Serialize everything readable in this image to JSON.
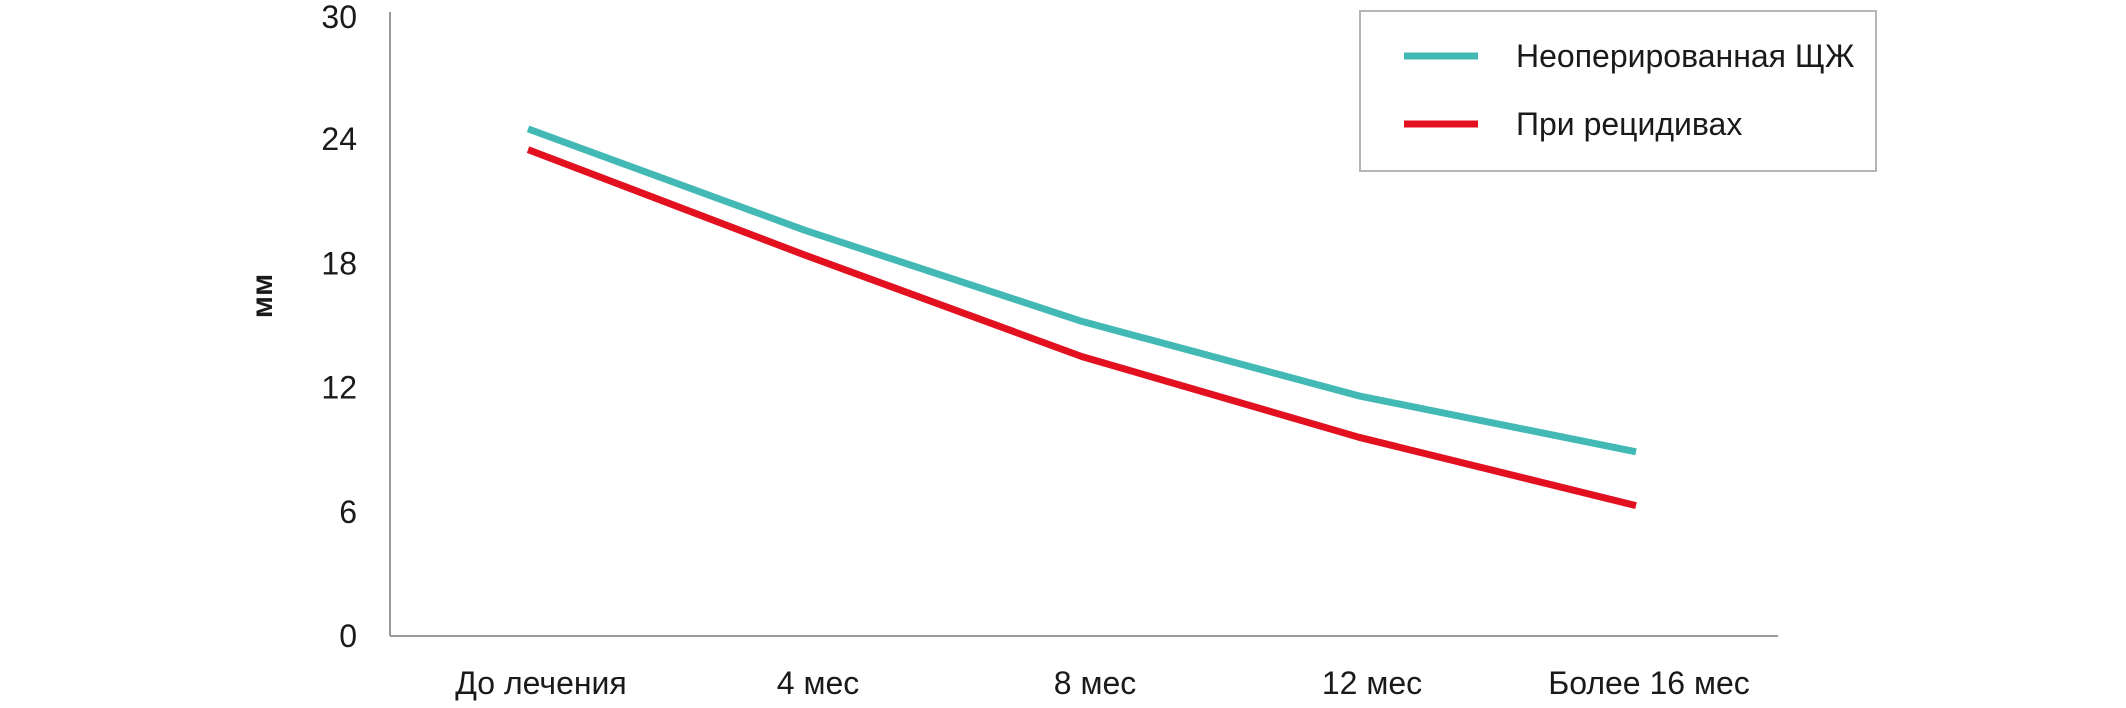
{
  "chart_data": {
    "type": "line",
    "title": "",
    "xlabel": "",
    "ylabel": "мм",
    "categories": [
      "До лечения",
      "4 мес",
      "8 мес",
      "12 мес",
      "Более 16 мес"
    ],
    "yticks": [
      "0",
      "6",
      "12",
      "18",
      "24",
      "30"
    ],
    "ylim": [
      0,
      30
    ],
    "grid": false,
    "legend_position": "top-right",
    "series": [
      {
        "name": "Неоперированная ЩЖ",
        "color": "#43b9b5",
        "values": [
          24.5,
          19.6,
          15.2,
          11.6,
          8.9
        ]
      },
      {
        "name": "При рецидивах",
        "color": "#e3101f",
        "values": [
          23.5,
          18.4,
          13.5,
          9.6,
          6.3
        ]
      }
    ]
  }
}
